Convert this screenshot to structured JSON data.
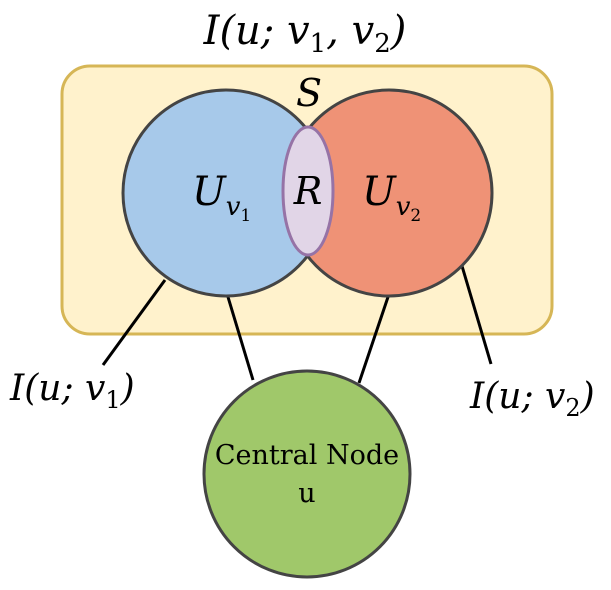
{
  "diagram": {
    "top_label": {
      "pre": "I(u; v",
      "sub1": "1",
      "mid": ", v",
      "sub2": "2",
      "post": ")"
    },
    "set_label": "S",
    "circle_left": {
      "main": "U",
      "sub": "v",
      "subsub": "1"
    },
    "overlap_label": "R",
    "circle_right": {
      "main": "U",
      "sub": "v",
      "subsub": "2"
    },
    "left_info": {
      "pre": "I(u; v",
      "sub": "1",
      "post": ")"
    },
    "right_info": {
      "pre": "I(u; v",
      "sub": "2",
      "post": ")"
    },
    "central_node": {
      "line1": "Central Node",
      "line2": "u"
    }
  },
  "colors": {
    "background_box_fill": "#fff2cc",
    "background_box_stroke": "#d6b656",
    "left_circle_fill": "#a7c9ea",
    "right_circle_fill": "#ef9276",
    "overlap_fill": "#e1d5e7",
    "overlap_stroke": "#9673a6",
    "central_node_fill": "#a0c86a",
    "outline": "#444444"
  }
}
